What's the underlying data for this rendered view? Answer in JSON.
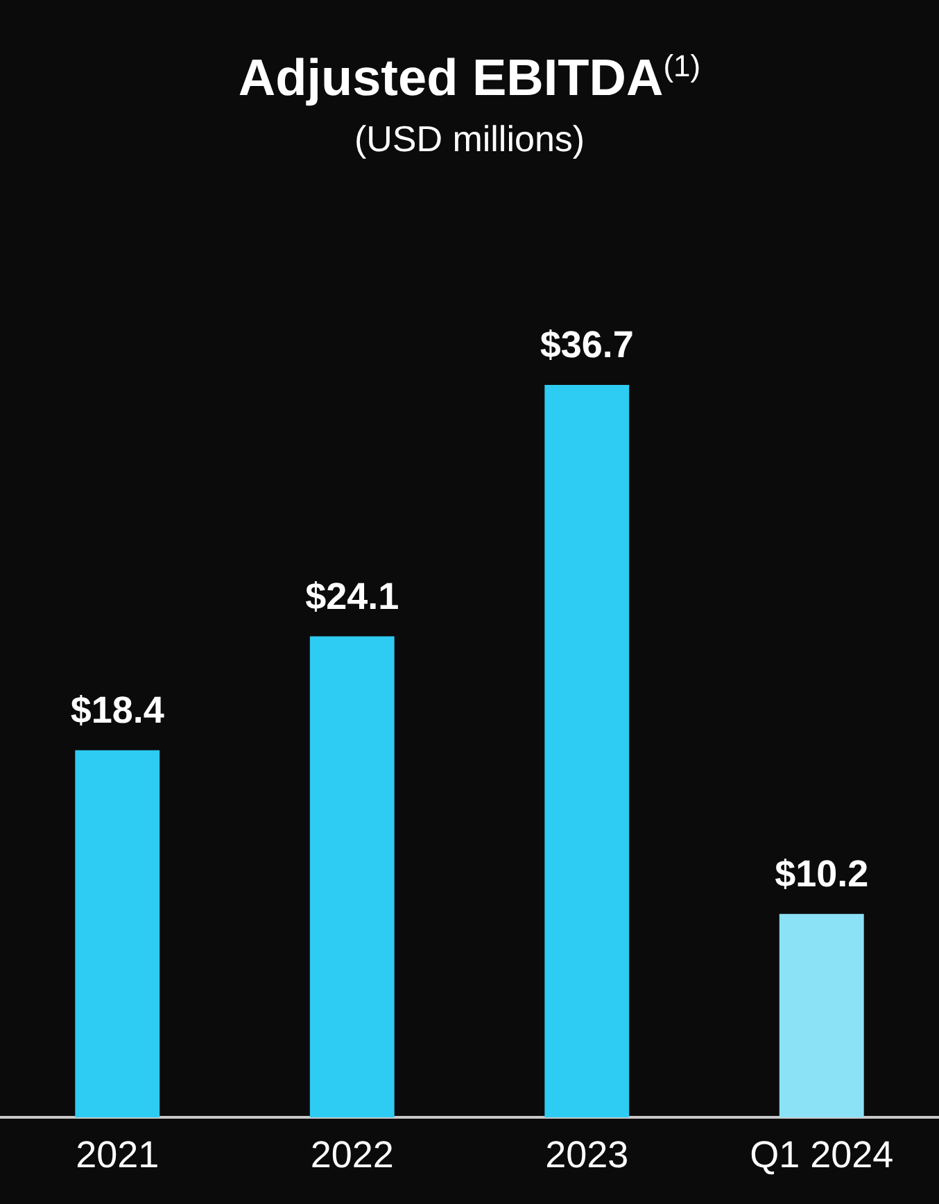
{
  "chart_data": {
    "type": "bar",
    "title": "Adjusted EBITDA$^{(1)}$",
    "subtitle": "(USD millions)",
    "categories": [
      "2021",
      "2022",
      "2023",
      "Q1 2024"
    ],
    "values": [
      18.4,
      24.1,
      36.7,
      10.2
    ],
    "colors": [
      "#2ecbf2",
      "#2ecbf2",
      "#2ecbf2",
      "#8be2f7"
    ],
    "value_labels": [
      "$18.4",
      "$24.1",
      "$36.7",
      "$10.2"
    ],
    "legend": false,
    "tick_labels": "x"
  }
}
